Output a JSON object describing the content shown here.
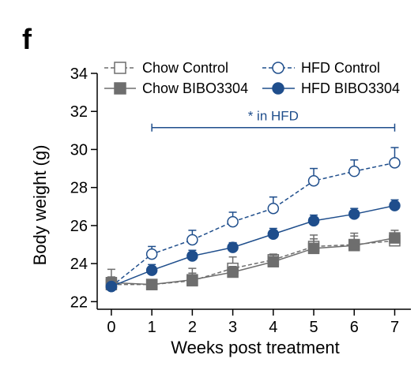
{
  "panel_label": "f",
  "colors": {
    "chow": "#6e6e6e",
    "hfd": "#1f4e8c",
    "axis": "#000000"
  },
  "chart_data": {
    "type": "line",
    "xlabel": "Weeks post treatment",
    "ylabel": "Body weight (g)",
    "x": [
      0,
      1,
      2,
      3,
      4,
      5,
      6,
      7
    ],
    "xticks": [
      "0",
      "1",
      "2",
      "3",
      "4",
      "5",
      "6",
      "7"
    ],
    "yticks": [
      "22",
      "24",
      "26",
      "28",
      "30",
      "32",
      "34"
    ],
    "ylim": [
      21.6,
      34
    ],
    "xlim": [
      -0.35,
      7.4
    ],
    "grid": false,
    "legend_position": "top",
    "series": [
      {
        "name": "Chow Control",
        "marker": "open-square",
        "line": "dashed",
        "color": "#6e6e6e",
        "values": [
          22.9,
          22.9,
          23.1,
          23.75,
          24.2,
          24.9,
          25.0,
          25.2
        ],
        "errors": [
          0.8,
          0.1,
          0.4,
          0.6,
          0.3,
          0.6,
          0.6,
          0.4
        ]
      },
      {
        "name": "HFD Control",
        "marker": "open-circle",
        "line": "dashed",
        "color": "#1f4e8c",
        "values": [
          22.8,
          24.5,
          25.25,
          26.2,
          26.9,
          28.35,
          28.85,
          29.3
        ],
        "errors": [
          0.15,
          0.4,
          0.5,
          0.5,
          0.6,
          0.65,
          0.6,
          0.8
        ]
      },
      {
        "name": "Chow BIBO3304",
        "marker": "filled-square",
        "line": "solid",
        "color": "#6e6e6e",
        "values": [
          23.0,
          22.9,
          23.15,
          23.55,
          24.1,
          24.8,
          24.95,
          25.35
        ],
        "errors": [
          0.3,
          0.15,
          0.6,
          0.3,
          0.35,
          0.5,
          0.5,
          0.4
        ]
      },
      {
        "name": "HFD BIBO3304",
        "marker": "filled-circle",
        "line": "solid",
        "color": "#1f4e8c",
        "values": [
          22.8,
          23.65,
          24.4,
          24.85,
          25.55,
          26.25,
          26.6,
          27.05
        ],
        "errors": [
          0.1,
          0.3,
          0.3,
          0.25,
          0.3,
          0.3,
          0.3,
          0.3
        ]
      }
    ],
    "annotation": {
      "text": "* in HFD",
      "x_start": 1,
      "x_end": 7,
      "y": 31.15,
      "color": "#1f4e8c"
    }
  }
}
